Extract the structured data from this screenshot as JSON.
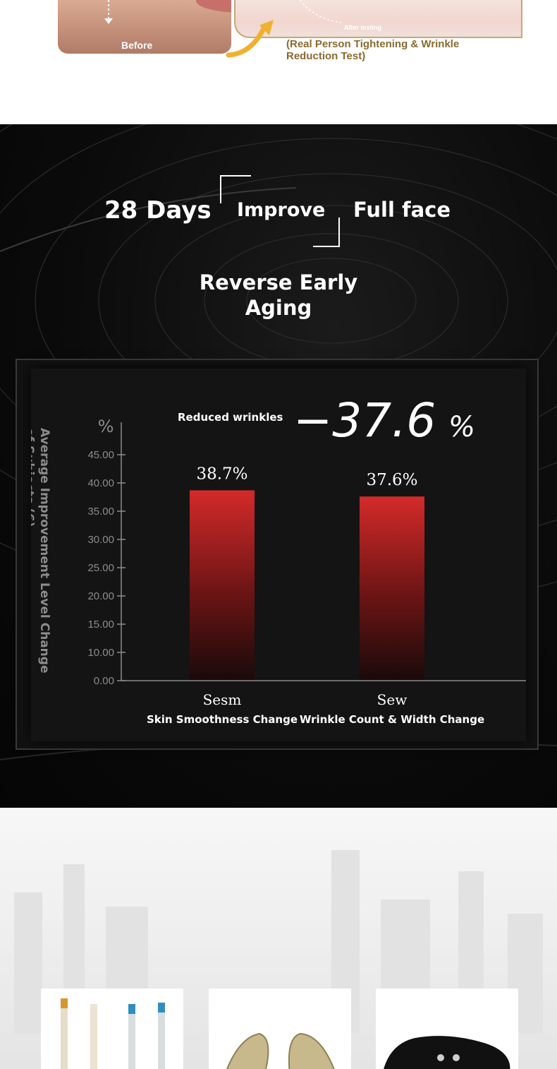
{
  "top": {
    "before_label": "Before",
    "after_label": "After testing",
    "caption": "(Real Person Tightening & Wrinkle Reduction Test)"
  },
  "headline": {
    "days": "28 Days",
    "improve": "Improve",
    "full_face": "Full face",
    "subtitle": "Reverse Early Aging"
  },
  "colors": {
    "background": "#0b0b0b",
    "bar_top": "#d42a2a",
    "bar_bottom": "#1a0a0a",
    "text": "#ffffff",
    "axis": "#8c8c8c",
    "gold": "#8a6a2e"
  },
  "chart_data": {
    "type": "bar",
    "highlight_label": "Reduced wrinkles",
    "highlight_value": "−37.6%",
    "ylabel": "Average Improvement Level Change of Subjects (6)",
    "yunit": "%",
    "ylim": [
      0,
      45
    ],
    "yticks": [
      "0.00",
      "10.00",
      "15.00",
      "20.00",
      "25.00",
      "30.00",
      "35.00",
      "40.00",
      "45.00"
    ],
    "ytick_values": [
      0,
      10,
      15,
      20,
      25,
      30,
      35,
      40,
      45
    ],
    "categories": [
      "Sesm",
      "Sew"
    ],
    "category_descriptions": [
      "Skin Smoothness Change",
      "Wrinkle Count & Width Change"
    ],
    "values": [
      38.7,
      37.6
    ],
    "value_labels": [
      "38.7%",
      "37.6%"
    ],
    "grid": false
  },
  "icons": [
    "before-arrow-icon",
    "swirl-background-icon"
  ]
}
